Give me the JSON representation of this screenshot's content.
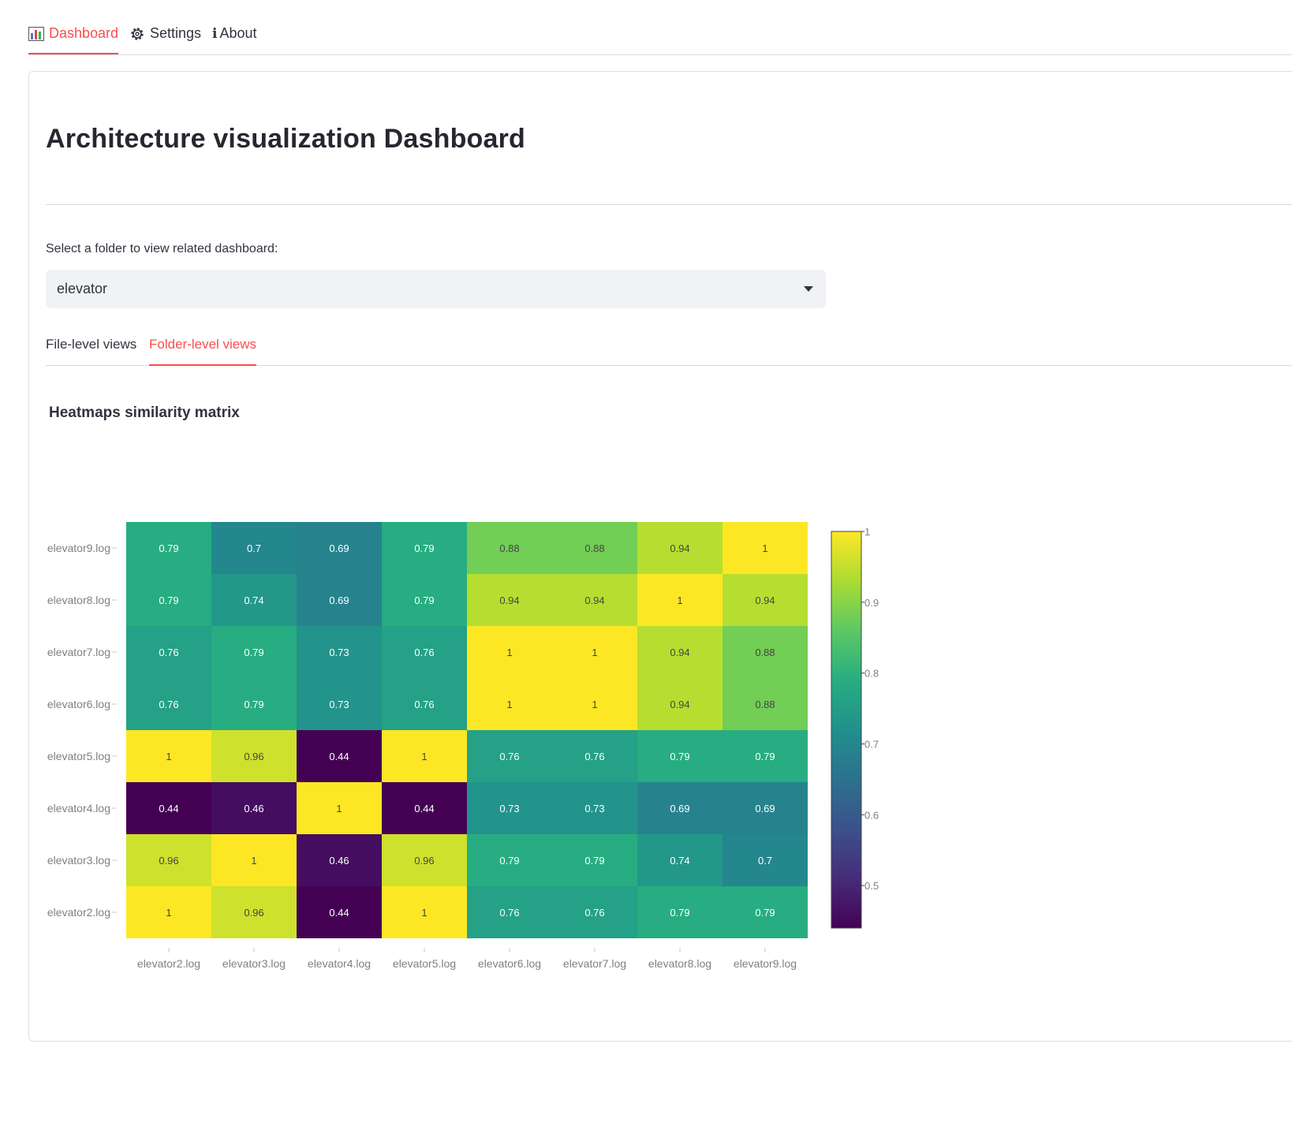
{
  "nav": {
    "tabs": [
      {
        "label": "Dashboard",
        "icon": "bar-chart-icon",
        "active": true
      },
      {
        "label": "Settings",
        "icon": "gear-icon",
        "active": false
      },
      {
        "label": "About",
        "icon": "info-icon",
        "active": false
      }
    ]
  },
  "main": {
    "title": "Architecture visualization Dashboard",
    "folder_select": {
      "label": "Select a folder to view related dashboard:",
      "value": "elevator"
    },
    "view_tabs": [
      {
        "label": "File-level views",
        "active": false
      },
      {
        "label": "Folder-level views",
        "active": true
      }
    ],
    "section_title": "Heatmaps similarity matrix"
  },
  "chart_data": {
    "type": "heatmap",
    "title": "",
    "x_labels": [
      "elevator2.log",
      "elevator3.log",
      "elevator4.log",
      "elevator5.log",
      "elevator6.log",
      "elevator7.log",
      "elevator8.log",
      "elevator9.log"
    ],
    "y_labels": [
      "elevator2.log",
      "elevator3.log",
      "elevator4.log",
      "elevator5.log",
      "elevator6.log",
      "elevator7.log",
      "elevator8.log",
      "elevator9.log"
    ],
    "z": [
      [
        1,
        0.96,
        0.44,
        1,
        0.76,
        0.76,
        0.79,
        0.79
      ],
      [
        0.96,
        1,
        0.46,
        0.96,
        0.79,
        0.79,
        0.74,
        0.7
      ],
      [
        0.44,
        0.46,
        1,
        0.44,
        0.73,
        0.73,
        0.69,
        0.69
      ],
      [
        1,
        0.96,
        0.44,
        1,
        0.76,
        0.76,
        0.79,
        0.79
      ],
      [
        0.76,
        0.79,
        0.73,
        0.76,
        1,
        1,
        0.94,
        0.88
      ],
      [
        0.76,
        0.79,
        0.73,
        0.76,
        1,
        1,
        0.94,
        0.88
      ],
      [
        0.79,
        0.74,
        0.69,
        0.79,
        0.94,
        0.94,
        1,
        0.94
      ],
      [
        0.79,
        0.7,
        0.69,
        0.79,
        0.88,
        0.88,
        0.94,
        1
      ]
    ],
    "colorscale": "viridis",
    "zrange": [
      0.44,
      1
    ],
    "colorbar_ticks": [
      0.5,
      0.6,
      0.7,
      0.8,
      0.9,
      1
    ],
    "colorbar_tick_labels": [
      "0.5",
      "0.6",
      "0.7",
      "0.8",
      "0.9",
      "1"
    ]
  },
  "colors": {
    "accent": "#ff4b4b",
    "text": "#31333f",
    "select_bg": "#f0f2f6",
    "axis_text": "#7f7f87"
  }
}
